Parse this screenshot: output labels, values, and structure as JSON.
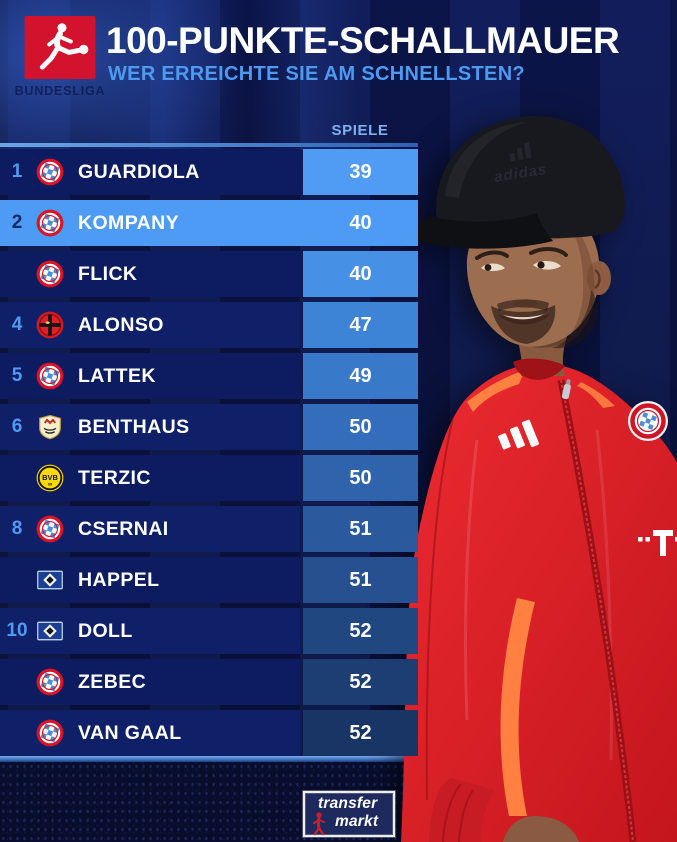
{
  "header": {
    "league": "BUNDESLIGA",
    "title": "100-PUNKTE-SCHALLMAUER",
    "subtitle": "WER ERREICHTE SIE AM SCHNELLSTEN?"
  },
  "table": {
    "column_header": "SPIELE",
    "rows": [
      {
        "rank": "1",
        "club": "bayern",
        "coach": "GUARDIOLA",
        "games": "39",
        "highlight": false
      },
      {
        "rank": "2",
        "club": "bayern",
        "coach": "KOMPANY",
        "games": "40",
        "highlight": true
      },
      {
        "rank": "",
        "club": "bayern",
        "coach": "FLICK",
        "games": "40",
        "highlight": false
      },
      {
        "rank": "4",
        "club": "leverkusen",
        "coach": "ALONSO",
        "games": "47",
        "highlight": false
      },
      {
        "rank": "5",
        "club": "bayern",
        "coach": "LATTEK",
        "games": "49",
        "highlight": false
      },
      {
        "rank": "6",
        "club": "stuttgart",
        "coach": "BENTHAUS",
        "games": "50",
        "highlight": false
      },
      {
        "rank": "",
        "club": "dortmund",
        "coach": "TERZIC",
        "games": "50",
        "highlight": false
      },
      {
        "rank": "8",
        "club": "bayern",
        "coach": "CSERNAI",
        "games": "51",
        "highlight": false
      },
      {
        "rank": "",
        "club": "hsv",
        "coach": "HAPPEL",
        "games": "51",
        "highlight": false
      },
      {
        "rank": "10",
        "club": "hsv",
        "coach": "DOLL",
        "games": "52",
        "highlight": false
      },
      {
        "rank": "",
        "club": "bayern",
        "coach": "ZEBEC",
        "games": "52",
        "highlight": false
      },
      {
        "rank": "",
        "club": "bayern",
        "coach": "VAN GAAL",
        "games": "52",
        "highlight": false
      }
    ],
    "value_colors": [
      "#509bf3",
      "#4f9af2",
      "#4691e5",
      "#3e84d6",
      "#3979c9",
      "#346dbb",
      "#2f64ad",
      "#2a599e",
      "#265090",
      "#214781",
      "#1d3e73",
      "#193565"
    ]
  },
  "footer": {
    "brand_top": "transfer",
    "brand_bottom": "markt"
  },
  "photo": {
    "cap_text": "adidas"
  },
  "colors": {
    "background": "#0b1340",
    "highlight": "#4d9bf5",
    "accent_blue": "#4f9af2",
    "row_dark": "#0d1c61",
    "jacket_red": "#e02028",
    "jacket_orange": "#ff8040",
    "bundesliga_red": "#d3122e"
  },
  "chart_data": {
    "type": "table",
    "title": "100-PUNKTE-SCHALLMAUER",
    "subtitle": "WER ERREICHTE SIE AM SCHNELLSTEN?",
    "value_column": "SPIELE",
    "ranks": [
      "1",
      "2",
      "",
      "4",
      "5",
      "6",
      "",
      "8",
      "",
      "10",
      "",
      ""
    ],
    "coaches": [
      "GUARDIOLA",
      "KOMPANY",
      "FLICK",
      "ALONSO",
      "LATTEK",
      "BENTHAUS",
      "TERZIC",
      "CSERNAI",
      "HAPPEL",
      "DOLL",
      "ZEBEC",
      "VAN GAAL"
    ],
    "spiele": [
      39,
      40,
      40,
      47,
      49,
      50,
      50,
      51,
      51,
      52,
      52,
      52
    ],
    "clubs": [
      "Bayern München",
      "Bayern München",
      "Bayern München",
      "Bayer Leverkusen",
      "Bayern München",
      "VfB Stuttgart",
      "Borussia Dortmund",
      "Bayern München",
      "Hamburger SV",
      "Hamburger SV",
      "Bayern München",
      "Bayern München"
    ],
    "highlighted_row": "KOMPANY"
  }
}
